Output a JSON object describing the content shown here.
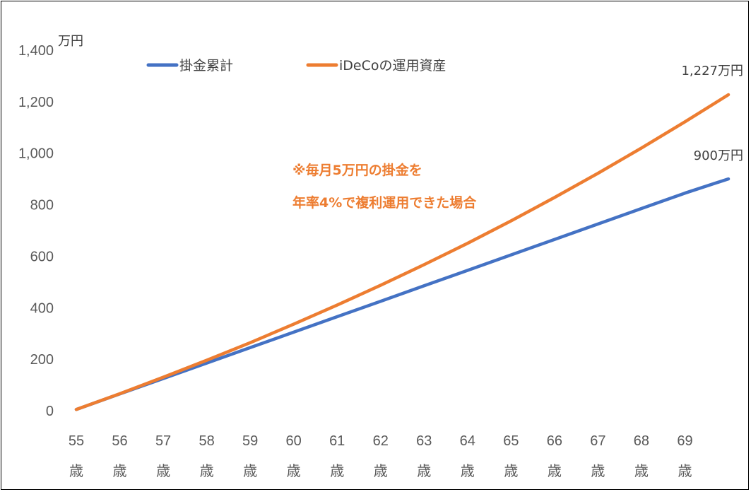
{
  "chart_data": {
    "type": "line",
    "ylabel": "万円",
    "ylim": [
      0,
      1400
    ],
    "yticks": [
      0,
      200,
      400,
      600,
      800,
      1000,
      1200,
      1400
    ],
    "ytick_labels": [
      "0",
      "200",
      "400",
      "600",
      "800",
      "1,000",
      "1,200",
      "1,400"
    ],
    "x": [
      55,
      56,
      57,
      58,
      59,
      60,
      61,
      62,
      63,
      64,
      65,
      66,
      67,
      68,
      69,
      70
    ],
    "xtick_labels": [
      "55",
      "56",
      "57",
      "58",
      "59",
      "60",
      "61",
      "62",
      "63",
      "64",
      "65",
      "66",
      "67",
      "68",
      "69"
    ],
    "xtick_sublabel": "歳",
    "grid": false,
    "legend_position": "top",
    "series": [
      {
        "name": "掛金累計",
        "color": "#4472C4",
        "values": [
          5,
          65,
          125,
          185,
          245,
          305,
          365,
          425,
          485,
          545,
          605,
          665,
          725,
          785,
          845,
          900
        ]
      },
      {
        "name": "iDeCoの運用資産",
        "color": "#ED7D31",
        "values": [
          5,
          66,
          130,
          196,
          264,
          336,
          410,
          487,
          567,
          650,
          737,
          828,
          922,
          1020,
          1122,
          1227
        ]
      }
    ],
    "end_labels": [
      "900万円",
      "1,227万円"
    ],
    "annotation": {
      "lines": [
        "※毎月5万円の掛金を",
        "年率4%で複利運用できた場合"
      ],
      "color": "#ED7D31"
    }
  }
}
